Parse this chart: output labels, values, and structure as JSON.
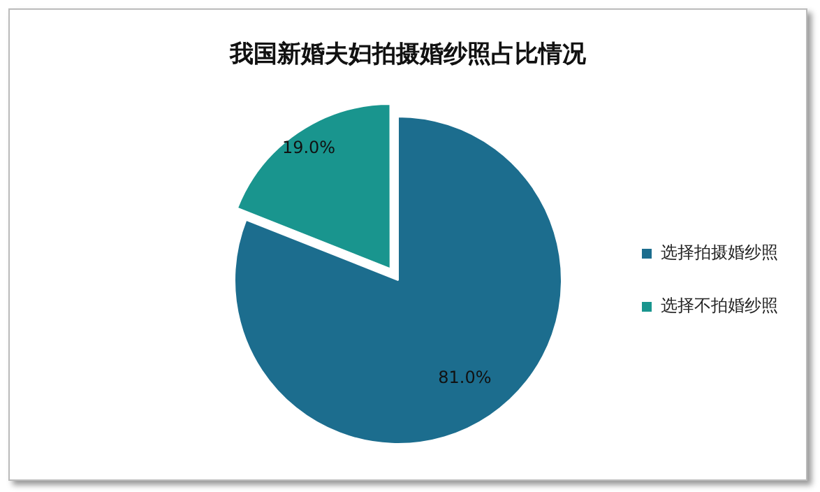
{
  "chart_data": {
    "type": "pie",
    "title": "我国新婚夫妇拍摄婚纱照占比情况",
    "categories": [
      "选择拍摄婚纱照",
      "选择不拍婚纱照"
    ],
    "values": [
      81.0,
      19.0
    ],
    "colors": [
      "#1c6d8e",
      "#19958e"
    ],
    "value_labels": [
      "81.0%",
      "19.0%"
    ],
    "legend": "right"
  }
}
